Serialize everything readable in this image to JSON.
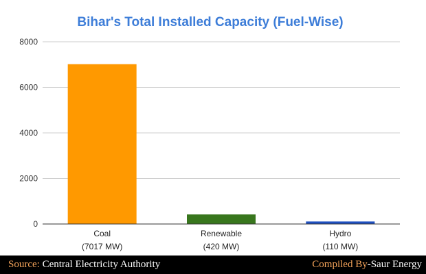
{
  "chart_data": {
    "type": "bar",
    "title": "Bihar's Total Installed Capacity (Fuel-Wise)",
    "categories": [
      "Coal",
      "Renewable",
      "Hydro"
    ],
    "category_values": [
      "(7017 MW)",
      "(420 MW)",
      "(110 MW)"
    ],
    "values": [
      7017,
      420,
      110
    ],
    "bar_colors": [
      "#ff9900",
      "#38761d",
      "#1f4fbf"
    ],
    "ylim": [
      0,
      8000
    ],
    "yticks": [
      0,
      2000,
      4000,
      6000,
      8000
    ],
    "xlabel": "",
    "ylabel": "",
    "grid": true,
    "legend": "none"
  },
  "footer": {
    "source_label": "Source:",
    "source_text": " Central Electricity Authority",
    "compiled_label": "Compiled By",
    "compiled_text": "-Saur Energy",
    "accent_color": "#f5a45a"
  }
}
